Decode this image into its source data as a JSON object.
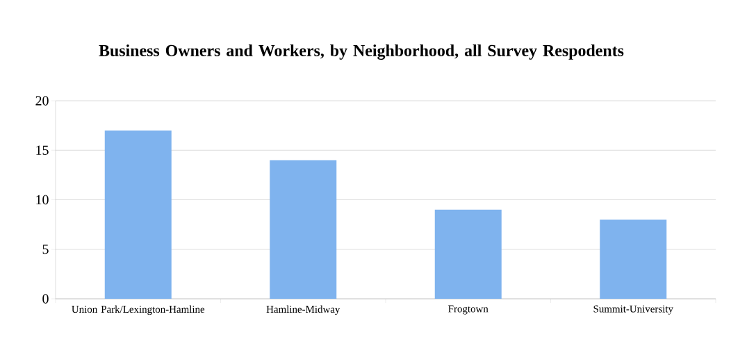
{
  "chart_data": {
    "type": "bar",
    "title": "Business Owners and Workers, by Neighborhood, all Survey Respodents",
    "categories": [
      "Union Park/Lexington-Hamline",
      "Hamline-Midway",
      "Frogtown",
      "Summit-University"
    ],
    "values": [
      17,
      14,
      9,
      8
    ],
    "color": "#7fb3ee",
    "ylim": [
      0,
      20
    ],
    "yticks": [
      0,
      5,
      10,
      15,
      20
    ],
    "grid": "y"
  }
}
